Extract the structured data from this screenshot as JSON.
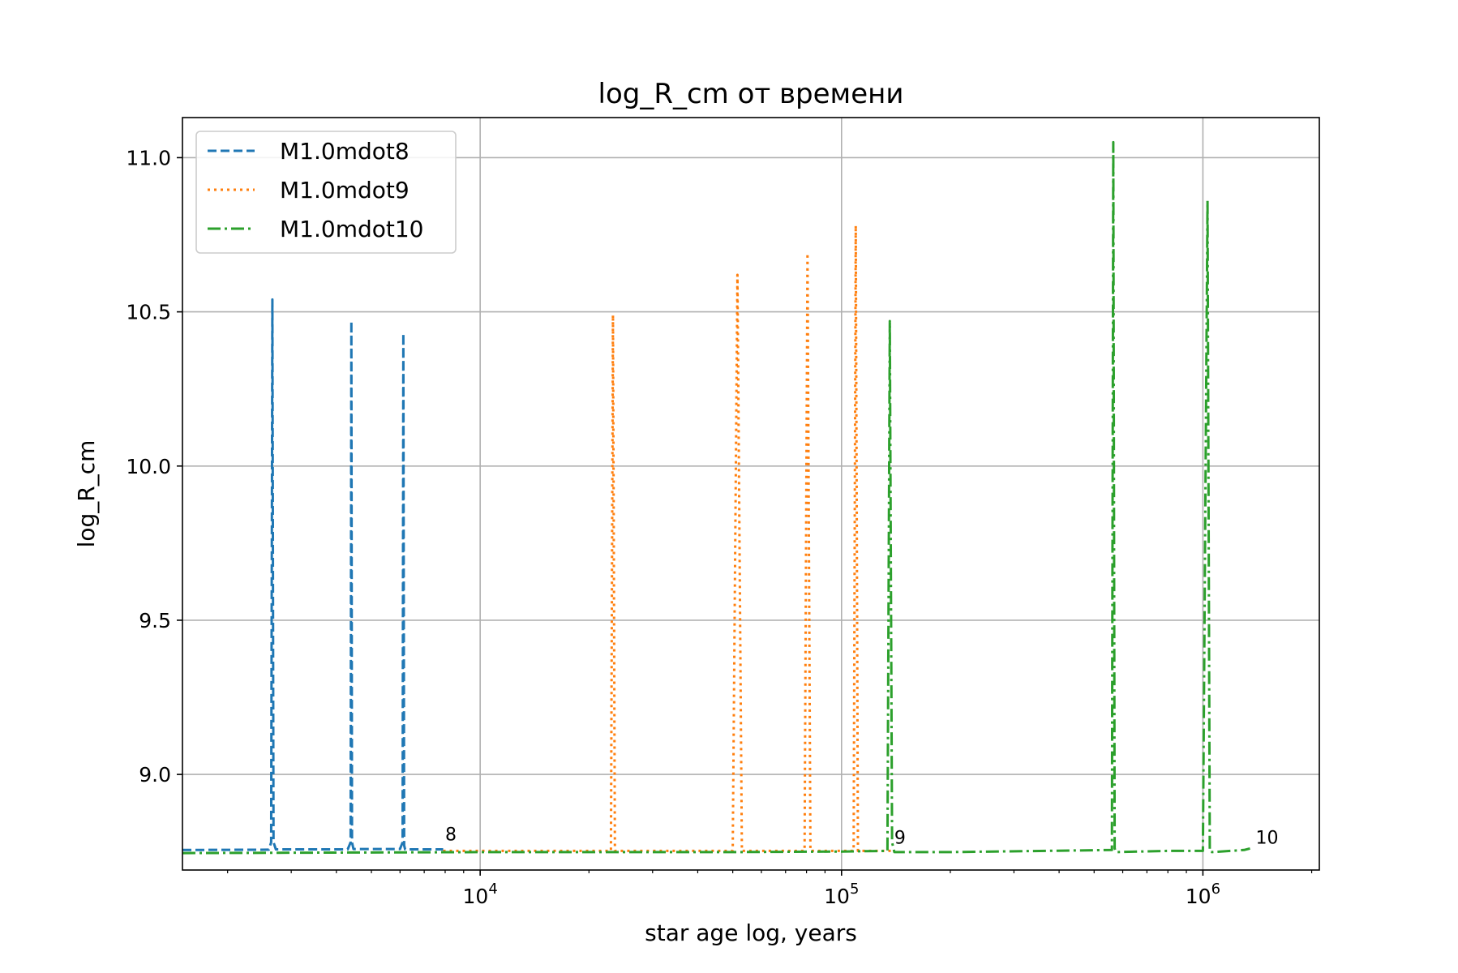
{
  "chart_data": {
    "type": "line",
    "title": "log_R_cm от времени",
    "xlabel": "star age log, years",
    "ylabel": "log_R_cm",
    "xscale": "log",
    "xlim": [
      1500,
      2100000
    ],
    "ylim": [
      8.69,
      11.13
    ],
    "yticks": [
      9.0,
      9.5,
      10.0,
      10.5,
      11.0
    ],
    "ytick_labels": [
      "9.0",
      "9.5",
      "10.0",
      "10.5",
      "11.0"
    ],
    "xticks": [
      10000,
      100000,
      1000000
    ],
    "xtick_base": "10",
    "xtick_exponents": [
      "4",
      "5",
      "6"
    ],
    "grid": true,
    "legend_position": "top-left",
    "series": [
      {
        "name": "M1.0mdot8",
        "color": "#1f77b4",
        "linestyle": "dashed",
        "x": [
          1500,
          2600,
          2640,
          2660,
          2680,
          2720,
          4300,
          4380,
          4400,
          4420,
          4460,
          6000,
          6100,
          6130,
          6160,
          6200,
          7900
        ],
        "y": [
          8.755,
          8.756,
          8.78,
          10.54,
          8.78,
          8.757,
          8.757,
          8.78,
          10.47,
          8.78,
          8.758,
          8.758,
          8.78,
          10.43,
          8.77,
          8.757,
          8.757
        ]
      },
      {
        "name": "M1.0mdot9",
        "color": "#ff7f0e",
        "linestyle": "dotted",
        "x": [
          7900,
          23000,
          23300,
          23600,
          50000,
          51500,
          53000,
          79000,
          80500,
          82000,
          108000,
          109500,
          111000,
          137000
        ],
        "y": [
          8.752,
          8.752,
          10.49,
          8.752,
          8.752,
          10.62,
          8.752,
          8.752,
          10.69,
          8.752,
          8.752,
          10.78,
          8.752,
          8.752
        ]
      },
      {
        "name": "M1.0mdot10",
        "color": "#2ca02c",
        "linestyle": "dashdot",
        "x": [
          1500,
          10000,
          50000,
          100000,
          134000,
          136000,
          138000,
          140000,
          200000,
          560000,
          565000,
          570000,
          575000,
          800000,
          1000000,
          1030000,
          1045000,
          1060000,
          1300000,
          1350000
        ],
        "y": [
          8.745,
          8.748,
          8.748,
          8.75,
          8.752,
          10.47,
          8.78,
          8.748,
          8.748,
          8.755,
          11.05,
          8.76,
          8.748,
          8.752,
          8.752,
          10.86,
          8.75,
          8.748,
          8.755,
          8.76
        ]
      }
    ],
    "annotations": [
      {
        "text": "8",
        "x": 8000,
        "y": 8.775
      },
      {
        "text": "9",
        "x": 140000,
        "y": 8.765
      },
      {
        "text": "10",
        "x": 1400000,
        "y": 8.765
      }
    ]
  }
}
